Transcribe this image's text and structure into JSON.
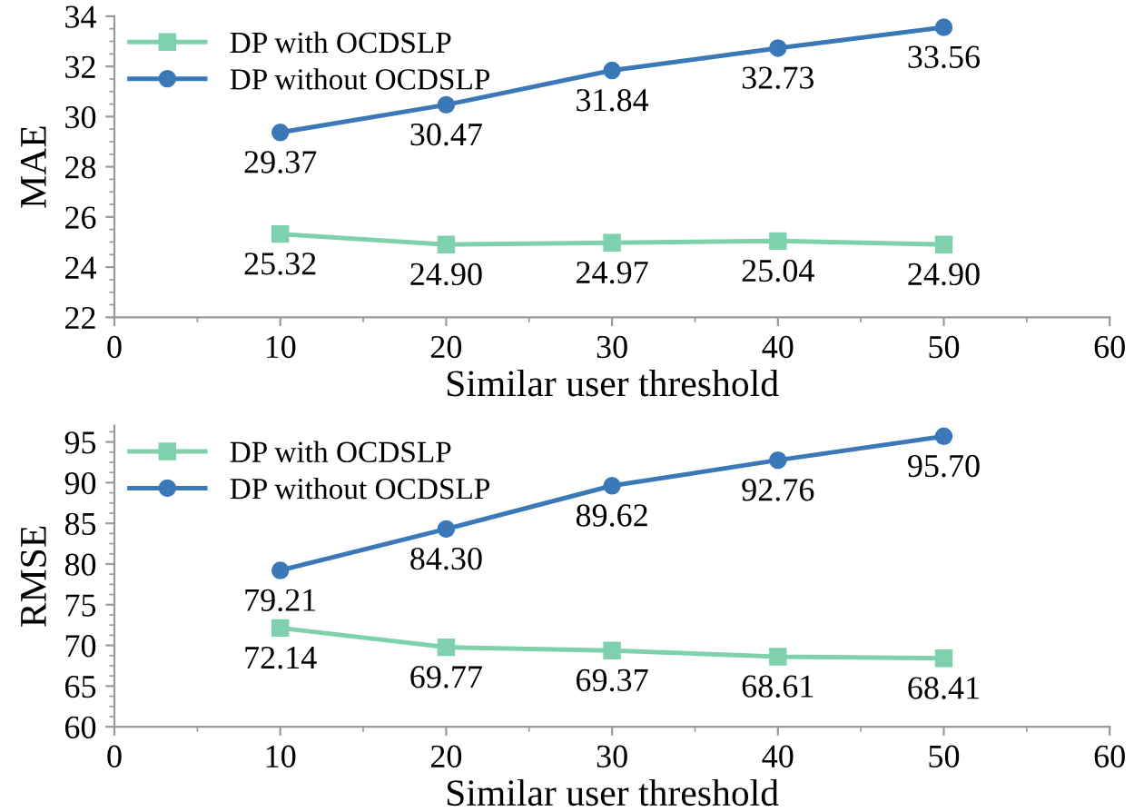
{
  "chart_data": [
    {
      "type": "line",
      "ylabel": "MAE",
      "xlabel": "Similar user threshold",
      "x": [
        10,
        20,
        30,
        40,
        50
      ],
      "xlim": [
        0,
        60
      ],
      "xticks": [
        0,
        10,
        20,
        30,
        40,
        50,
        60
      ],
      "ylim": [
        22,
        34
      ],
      "yticks": [
        22,
        24,
        26,
        28,
        30,
        32,
        34
      ],
      "legend": "top left",
      "grid": false,
      "series": [
        {
          "name": "DP with OCDSLP",
          "color": "#7fd1ae",
          "marker": "square",
          "values": [
            25.32,
            24.9,
            24.97,
            25.04,
            24.9
          ],
          "value_labels": [
            "25.32",
            "24.90",
            "24.97",
            "25.04",
            "24.90"
          ]
        },
        {
          "name": "DP without OCDSLP",
          "color": "#3a78b8",
          "marker": "circle",
          "values": [
            29.37,
            30.47,
            31.84,
            32.73,
            33.56
          ],
          "value_labels": [
            "29.37",
            "30.47",
            "31.84",
            "32.73",
            "33.56"
          ]
        }
      ]
    },
    {
      "type": "line",
      "ylabel": "RMSE",
      "xlabel": "Similar user threshold",
      "x": [
        10,
        20,
        30,
        40,
        50
      ],
      "xlim": [
        0,
        60
      ],
      "xticks": [
        0,
        10,
        20,
        30,
        40,
        50,
        60
      ],
      "ylim": [
        60,
        97
      ],
      "yticks": [
        60,
        65,
        70,
        75,
        80,
        85,
        90,
        95
      ],
      "legend": "top left",
      "grid": false,
      "series": [
        {
          "name": "DP with OCDSLP",
          "color": "#7fd1ae",
          "marker": "square",
          "values": [
            72.14,
            69.77,
            69.37,
            68.61,
            68.41
          ],
          "value_labels": [
            "72.14",
            "69.77",
            "69.37",
            "68.61",
            "68.41"
          ]
        },
        {
          "name": "DP without OCDSLP",
          "color": "#3a78b8",
          "marker": "circle",
          "values": [
            79.21,
            84.3,
            89.62,
            92.76,
            95.7
          ],
          "value_labels": [
            "79.21",
            "84.30",
            "89.62",
            "92.76",
            "95.70"
          ]
        }
      ]
    }
  ]
}
